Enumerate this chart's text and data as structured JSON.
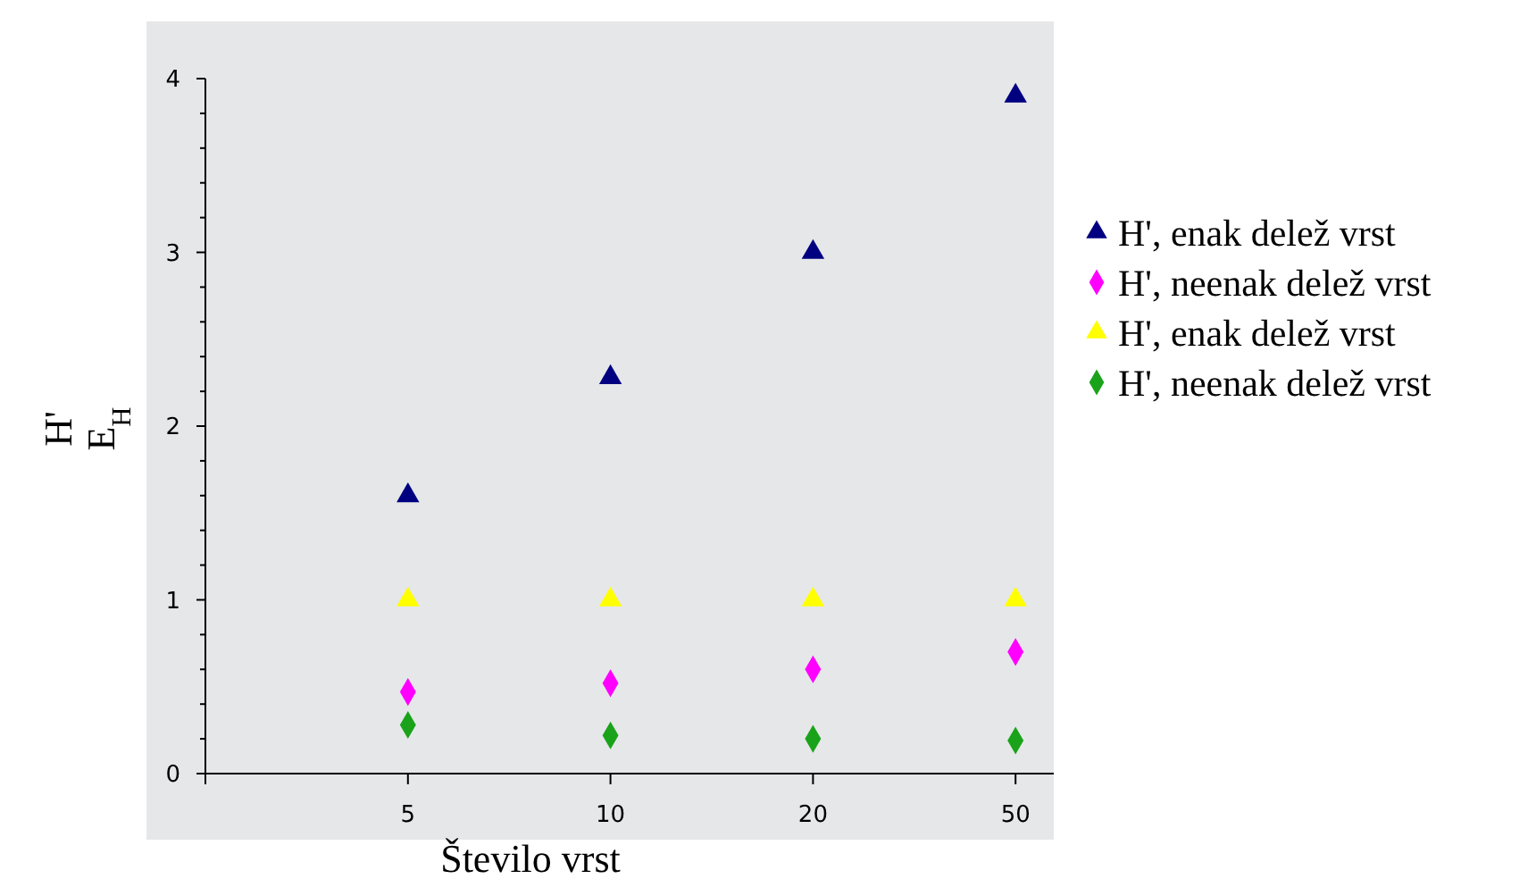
{
  "chart_data": {
    "type": "scatter",
    "xlabel": "Število vrst",
    "ylabel": "H'\nE$_{H}$",
    "categories": [
      "5",
      "10",
      "20",
      "50"
    ],
    "ylim": [
      0,
      4
    ],
    "yticks": [
      0,
      {
        "value": 0.2,
        "label": null
      },
      {
        "value": 0.4,
        "label": null
      },
      {
        "value": 0.6,
        "label": null
      },
      {
        "value": 0.8,
        "label": null
      },
      1,
      {
        "value": 1.2,
        "label": null
      },
      {
        "value": 1.4,
        "label": null
      },
      {
        "value": 1.6,
        "label": null
      },
      {
        "value": 1.8,
        "label": null
      },
      2,
      {
        "value": 2.2,
        "label": null
      },
      {
        "value": 2.4,
        "label": null
      },
      {
        "value": 2.6,
        "label": null
      },
      {
        "value": 2.8,
        "label": null
      },
      3,
      {
        "value": 3.2,
        "label": null
      },
      {
        "value": 3.4,
        "label": null
      },
      {
        "value": 3.6,
        "label": null
      },
      {
        "value": 3.8,
        "label": null
      },
      4
    ],
    "grid": false,
    "legend": "right",
    "series": [
      {
        "name": "H', enak delež vrst",
        "color": "#000080",
        "marker": "triangle",
        "values": [
          1.6,
          2.28,
          3.0,
          3.9
        ]
      },
      {
        "name": "H', neenak delež vrst",
        "color": "#ff00ff",
        "marker": "diamond",
        "values": [
          0.47,
          0.52,
          0.6,
          0.7
        ]
      },
      {
        "name": "H', enak delež vrst",
        "color": "#ffff00",
        "marker": "triangle",
        "values": [
          1,
          1,
          1,
          1
        ]
      },
      {
        "name": "H', neenak delež vrst",
        "color": "#1aa31a",
        "marker": "diamond",
        "values": [
          0.28,
          0.22,
          0.2,
          0.19
        ]
      }
    ]
  }
}
